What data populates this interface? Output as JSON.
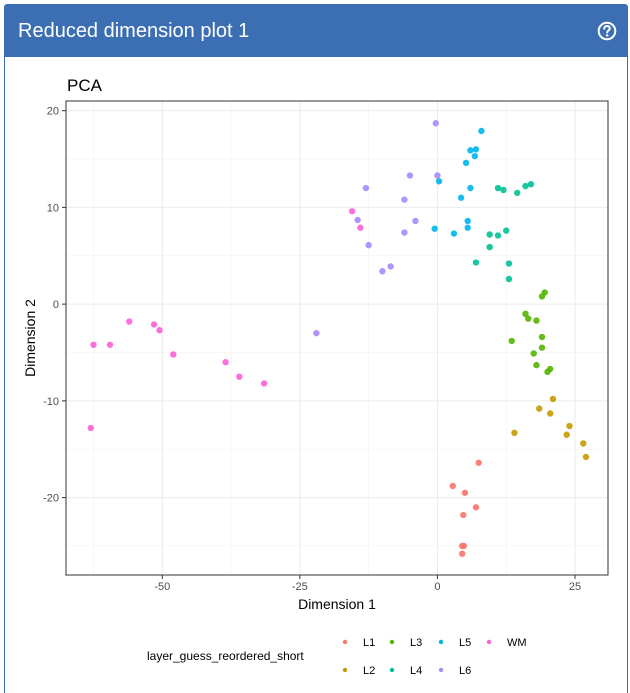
{
  "panel": {
    "title": "Reduced dimension plot 1",
    "header_color": "#3c6eb4",
    "help_icon": "question-circle-icon"
  },
  "chart_data": {
    "type": "scatter",
    "title": "PCA",
    "xlabel": "Dimension 1",
    "ylabel": "Dimension 2",
    "xlim": [
      -67.5,
      31
    ],
    "ylim": [
      -28,
      21
    ],
    "xticks": [
      -50,
      -25,
      0,
      25
    ],
    "xtick_labels": [
      "-50",
      "-25",
      "0",
      "25"
    ],
    "yticks": [
      -20,
      -10,
      0,
      10,
      20
    ],
    "ytick_labels": [
      "-20",
      "-10",
      "0",
      "10",
      "20"
    ],
    "grid": true,
    "legend": {
      "title": "layer_guess_reordered_short",
      "placement": "bottom"
    },
    "series": [
      {
        "name": "L1",
        "color": "#f8766d",
        "x": [
          7.5,
          2.8,
          5.0,
          7.0,
          4.7,
          4.5,
          4.8,
          4.5
        ],
        "y": [
          -16.4,
          -18.8,
          -19.5,
          -21.0,
          -21.8,
          -25.0,
          -25.0,
          -25.8
        ]
      },
      {
        "name": "L2",
        "color": "#c49a00",
        "x": [
          21.0,
          18.5,
          20.5,
          24.0,
          23.5,
          26.5,
          27.0,
          14.0
        ],
        "y": [
          -9.8,
          -10.8,
          -11.3,
          -12.6,
          -13.5,
          -14.4,
          -15.8,
          -13.3
        ]
      },
      {
        "name": "L3",
        "color": "#53b400",
        "x": [
          19.5,
          19.0,
          16.0,
          16.5,
          18.0,
          13.5,
          19.0,
          19.0,
          17.5,
          20.5,
          18.0,
          20.0
        ],
        "y": [
          1.2,
          0.8,
          -1.0,
          -1.5,
          -1.7,
          -3.8,
          -3.4,
          -4.5,
          -5.1,
          -6.7,
          -6.3,
          -7.0
        ]
      },
      {
        "name": "L4",
        "color": "#00c094",
        "x": [
          17.0,
          16.0,
          11.0,
          12.0,
          14.5,
          12.5,
          11.0,
          9.5,
          9.5,
          13.0,
          7.0,
          13.0
        ],
        "y": [
          12.4,
          12.2,
          12.0,
          11.8,
          11.5,
          7.6,
          7.1,
          7.2,
          5.9,
          4.2,
          4.3,
          2.6
        ]
      },
      {
        "name": "L5",
        "color": "#00b6eb",
        "x": [
          8.0,
          6.0,
          7.0,
          6.8,
          5.2,
          0.3,
          4.3,
          6.0,
          5.5,
          -0.5,
          3.0,
          5.5
        ],
        "y": [
          17.9,
          15.9,
          16.0,
          15.3,
          14.6,
          12.7,
          11.0,
          12.0,
          8.6,
          7.8,
          7.3,
          7.9
        ]
      },
      {
        "name": "L6",
        "color": "#a58aff",
        "x": [
          -0.3,
          -5.0,
          -13.0,
          0.0,
          -6.0,
          -14.5,
          -4.0,
          -6.0,
          -12.5,
          -8.5,
          -10.0,
          -22.0
        ],
        "y": [
          18.7,
          13.3,
          12.0,
          13.3,
          10.8,
          8.7,
          8.6,
          7.4,
          6.1,
          3.9,
          3.4,
          -3.0
        ]
      },
      {
        "name": "WM",
        "color": "#fb61d7",
        "x": [
          -15.5,
          -14.0,
          -56.0,
          -51.5,
          -50.5,
          -62.5,
          -59.5,
          -48.0,
          -38.5,
          -36.0,
          -31.5,
          -63.0
        ],
        "y": [
          9.6,
          7.9,
          -1.8,
          -2.1,
          -2.7,
          -4.2,
          -4.2,
          -5.2,
          -6.0,
          -7.5,
          -8.2,
          -12.8
        ]
      }
    ]
  }
}
